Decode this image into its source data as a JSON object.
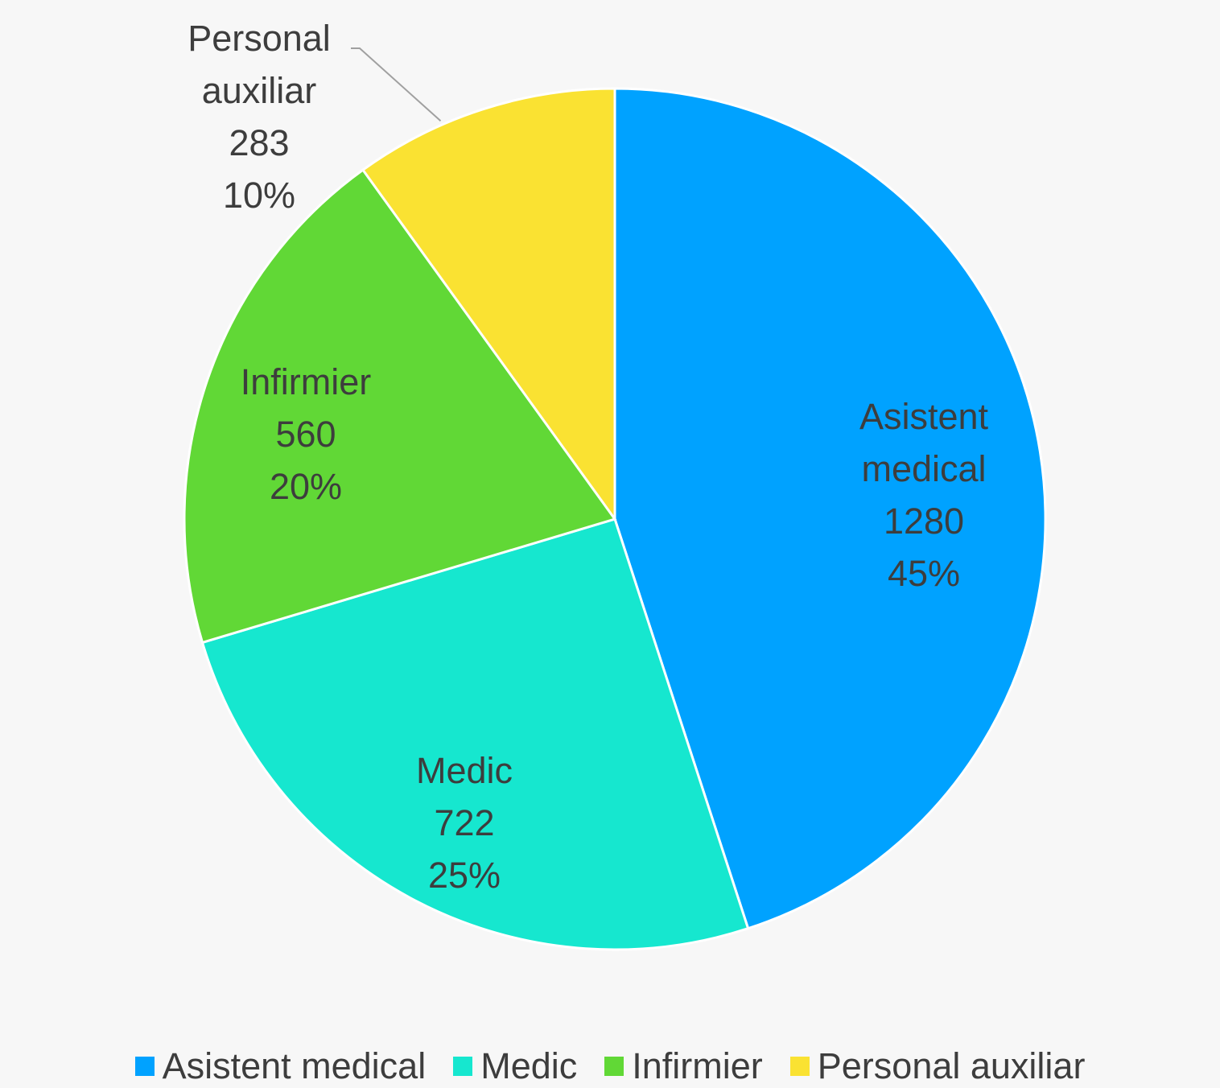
{
  "chart_data": {
    "type": "pie",
    "categories": [
      "Asistent medical",
      "Medic",
      "Infirmier",
      "Personal auxiliar"
    ],
    "values": [
      1280,
      722,
      560,
      283
    ],
    "percent_labels": [
      "45%",
      "25%",
      "20%",
      "10%"
    ],
    "colors": [
      "#00a2ff",
      "#16e7cf",
      "#61d836",
      "#fae232"
    ],
    "legend": "bottom"
  }
}
